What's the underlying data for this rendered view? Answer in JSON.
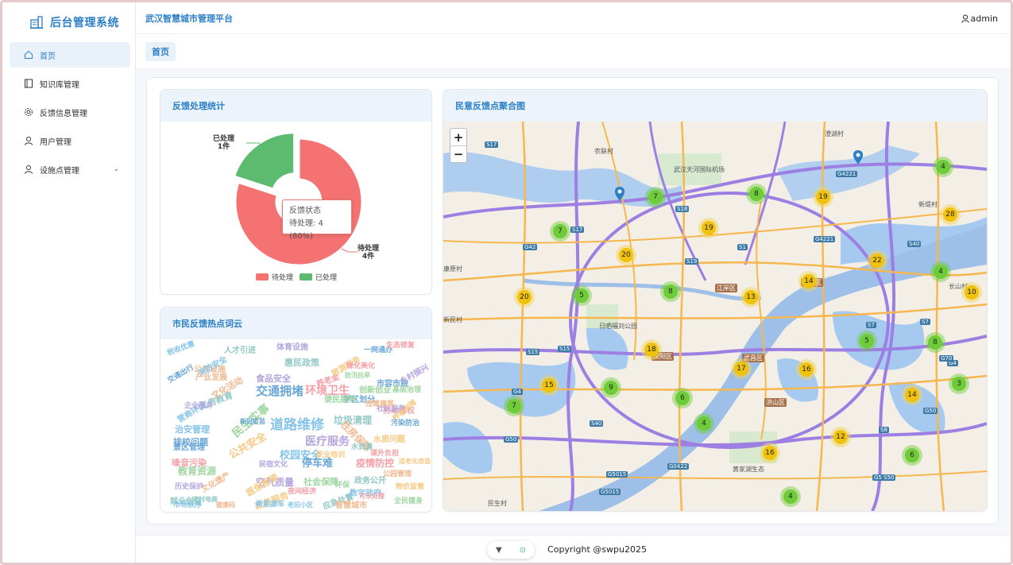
{
  "sidebar": {
    "logo_text": "后台管理系统",
    "items": [
      {
        "label": "首页",
        "icon": "home-icon"
      },
      {
        "label": "知识库管理",
        "icon": "book-icon"
      },
      {
        "label": "反馈信息管理",
        "icon": "gear-icon"
      },
      {
        "label": "用户管理",
        "icon": "user-icon"
      },
      {
        "label": "设施点管理",
        "icon": "user-icon"
      }
    ]
  },
  "header": {
    "title": "武汉智慧城市管理平台",
    "user": "admin"
  },
  "tabs": [
    {
      "label": "首页"
    }
  ],
  "feedback_stats": {
    "title": "反馈处理统计",
    "tooltip_title": "反馈状态",
    "tooltip_value": "待处理: 4 (80%)",
    "label_done": "已处理",
    "label_done_count": "1件",
    "label_pending": "待处理",
    "label_pending_count": "4件",
    "legend": [
      "待处理",
      "已处理"
    ],
    "colors": {
      "pending": "#f47372",
      "done": "#5cbb6f"
    }
  },
  "chart_data": {
    "type": "pie",
    "categories": [
      "待处理",
      "已处理"
    ],
    "values": [
      4,
      1
    ],
    "title": "反馈处理统计"
  },
  "map": {
    "title": "民意反馈点聚合图",
    "zoom_in": "+",
    "zoom_out": "−",
    "clusters": [
      4,
      8,
      19,
      28,
      7,
      7,
      19,
      20,
      22,
      4,
      14,
      20,
      5,
      8,
      13,
      10,
      5,
      8,
      18,
      17,
      16,
      3,
      15,
      9,
      7,
      6,
      14,
      4,
      12,
      16,
      6,
      4
    ],
    "places": [
      "农联村",
      "武汉天河国际机场",
      "澄湖村",
      "新堤村",
      "长山村",
      "康原村",
      "新民村",
      "日晒福刘公园",
      "民生村",
      "黄家湖生态"
    ],
    "districts": [
      "江岸区",
      "青山区",
      "汉阳区",
      "武昌区",
      "洪山区"
    ],
    "roads": [
      "S17",
      "S18",
      "G42",
      "S17",
      "S19",
      "S1",
      "G4221",
      "S40",
      "G4221",
      "S15",
      "S15",
      "G4",
      "S40",
      "G50",
      "G4",
      "G70",
      "S7",
      "S8",
      "G50",
      "G0422",
      "G5015",
      "G5015",
      "S50",
      "S7",
      "G50"
    ]
  },
  "wordcloud": {
    "title": "市民反馈热点词云",
    "words": [
      "道路维修",
      "交通拥堵",
      "环境卫生",
      "民生实事",
      "公共安全",
      "医疗服务",
      "垃圾清理",
      "住房保障",
      "校园安全",
      "停车难",
      "疫情防控",
      "社会保障",
      "政务服务",
      "空气质量",
      "义务教育",
      "文化活动",
      "治安管理",
      "排校问题",
      "噪音污染",
      "教育资源",
      "医保报销",
      "食品安全",
      "惠民政策",
      "公共设施",
      "消防安全",
      "学区划分",
      "养老金",
      "便民服务",
      "旅游服务",
      "体育设施",
      "人才引进",
      "产业发展",
      "营商环境",
      "景区管理",
      "劳动维权",
      "创新创业",
      "水质问题",
      "社区服务",
      "应急处置",
      "智慧城市",
      "数字政府",
      "市容市貌",
      "绿化美化",
      "全民健身",
      "职业培训",
      "乡村振兴",
      "就业创业",
      "文化遗产",
      "市场秩序",
      "一网通办",
      "课外负担",
      "防汛抗旱",
      "养老保障",
      "历史保护",
      "政务公开",
      "公园管理",
      "新能源车",
      "污染防治",
      "夜间经济",
      "环保",
      "物价监管",
      "民宿文化",
      "水资源",
      "违章建筑",
      "税收优惠",
      "交通出行",
      "生态修复",
      "基层治理",
      "适老化改造",
      "企业服务",
      "农村电商",
      "健康码",
      "老旧小区",
      "新冠疫苗",
      "污水处理"
    ]
  },
  "footer": {
    "copyright": "Copyright @swpu2025"
  }
}
